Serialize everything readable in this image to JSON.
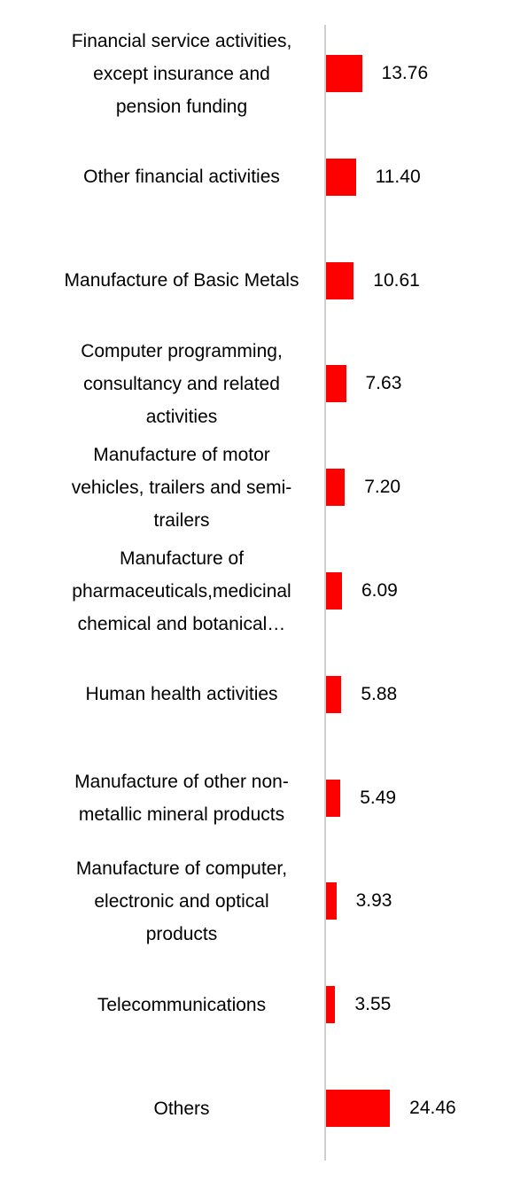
{
  "chart_data": {
    "type": "bar",
    "orientation": "horizontal",
    "bar_color": "#ff0000",
    "categories": [
      [
        "Financial service activities,",
        "except insurance and",
        "pension funding"
      ],
      [
        "Other financial activities"
      ],
      [
        "Manufacture of Basic Metals"
      ],
      [
        "Computer programming,",
        "consultancy and related",
        "activities"
      ],
      [
        "Manufacture of motor",
        "vehicles, trailers and semi-",
        "trailers"
      ],
      [
        "Manufacture of",
        "pharmaceuticals,medicinal",
        "chemical and botanical…"
      ],
      [
        "Human health activities"
      ],
      [
        "Manufacture of other non-",
        "metallic mineral products"
      ],
      [
        "Manufacture of computer,",
        "electronic and optical",
        "products"
      ],
      [
        "Telecommunications"
      ],
      [
        "Others"
      ]
    ],
    "values": [
      13.76,
      11.4,
      10.61,
      7.63,
      7.2,
      6.09,
      5.88,
      5.49,
      3.93,
      3.55,
      24.46
    ],
    "value_labels": [
      "13.76",
      "11.40",
      "10.61",
      "7.63",
      "7.20",
      "6.09",
      "5.88",
      "5.49",
      "3.93",
      "3.55",
      "24.46"
    ]
  }
}
